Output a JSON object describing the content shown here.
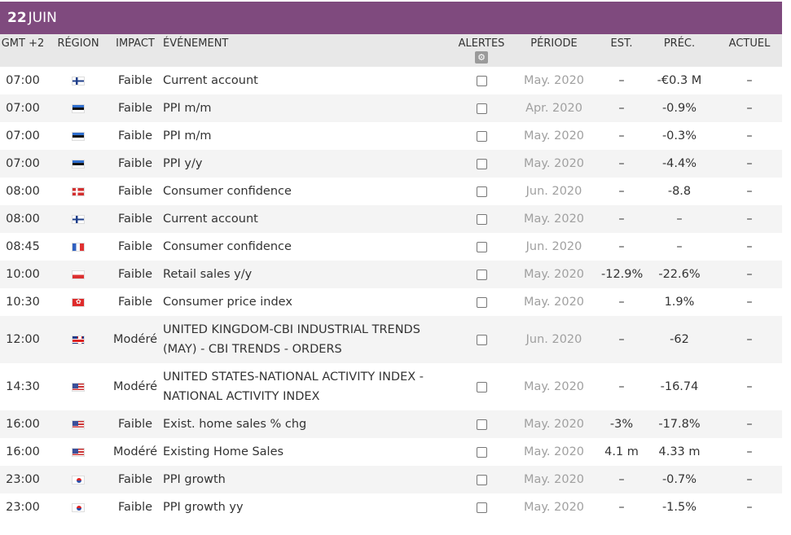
{
  "date": {
    "day": "22",
    "month": "JUIN"
  },
  "headers": {
    "time": "GMT +2",
    "region": "RÉGION",
    "impact": "IMPACT",
    "event": "ÉVÉNEMENT",
    "alerts": "ALERTES",
    "period": "PÉRIODE",
    "est": "EST.",
    "prev": "PRÉC.",
    "actual": "ACTUEL"
  },
  "icons": {
    "settings": "gear-icon"
  },
  "rows": [
    {
      "time": "07:00",
      "flag": "fi",
      "impact": "Faible",
      "event": "Current account",
      "period": "May. 2020",
      "est": "–",
      "prev": "-€0.3 M",
      "actual": "–"
    },
    {
      "time": "07:00",
      "flag": "ee",
      "impact": "Faible",
      "event": "PPI m/m",
      "period": "Apr. 2020",
      "est": "–",
      "prev": "-0.9%",
      "actual": "–"
    },
    {
      "time": "07:00",
      "flag": "ee",
      "impact": "Faible",
      "event": "PPI m/m",
      "period": "May. 2020",
      "est": "–",
      "prev": "-0.3%",
      "actual": "–"
    },
    {
      "time": "07:00",
      "flag": "ee",
      "impact": "Faible",
      "event": "PPI y/y",
      "period": "May. 2020",
      "est": "–",
      "prev": "-4.4%",
      "actual": "–"
    },
    {
      "time": "08:00",
      "flag": "dk",
      "impact": "Faible",
      "event": "Consumer confidence",
      "period": "Jun. 2020",
      "est": "–",
      "prev": "-8.8",
      "actual": "–"
    },
    {
      "time": "08:00",
      "flag": "fi",
      "impact": "Faible",
      "event": "Current account",
      "period": "May. 2020",
      "est": "–",
      "prev": "–",
      "actual": "–"
    },
    {
      "time": "08:45",
      "flag": "fr",
      "impact": "Faible",
      "event": "Consumer confidence",
      "period": "Jun. 2020",
      "est": "–",
      "prev": "–",
      "actual": "–"
    },
    {
      "time": "10:00",
      "flag": "pl",
      "impact": "Faible",
      "event": "Retail sales y/y",
      "period": "May. 2020",
      "est": "-12.9%",
      "prev": "-22.6%",
      "actual": "–"
    },
    {
      "time": "10:30",
      "flag": "hk",
      "impact": "Faible",
      "event": "Consumer price index",
      "period": "May. 2020",
      "est": "–",
      "prev": "1.9%",
      "actual": "–"
    },
    {
      "time": "12:00",
      "flag": "gb",
      "impact": "Modéré",
      "event": "UNITED KINGDOM-CBI INDUSTRIAL TRENDS (MAY) - CBI TRENDS - ORDERS",
      "period": "Jun. 2020",
      "est": "–",
      "prev": "-62",
      "actual": "–",
      "tall": true
    },
    {
      "time": "14:30",
      "flag": "us",
      "impact": "Modéré",
      "event": "UNITED STATES-NATIONAL ACTIVITY INDEX - NATIONAL ACTIVITY INDEX",
      "period": "May. 2020",
      "est": "–",
      "prev": "-16.74",
      "actual": "–",
      "tall": true
    },
    {
      "time": "16:00",
      "flag": "us",
      "impact": "Faible",
      "event": "Exist. home sales % chg",
      "period": "May. 2020",
      "est": "-3%",
      "prev": "-17.8%",
      "actual": "–"
    },
    {
      "time": "16:00",
      "flag": "us",
      "impact": "Modéré",
      "event": "Existing Home Sales",
      "period": "May. 2020",
      "est": "4.1 m",
      "prev": "4.33 m",
      "actual": "–"
    },
    {
      "time": "23:00",
      "flag": "kr",
      "impact": "Faible",
      "event": "PPI growth",
      "period": "May. 2020",
      "est": "–",
      "prev": "-0.7%",
      "actual": "–"
    },
    {
      "time": "23:00",
      "flag": "kr",
      "impact": "Faible",
      "event": "PPI growth yy",
      "period": "May. 2020",
      "est": "–",
      "prev": "-1.5%",
      "actual": "–"
    }
  ]
}
